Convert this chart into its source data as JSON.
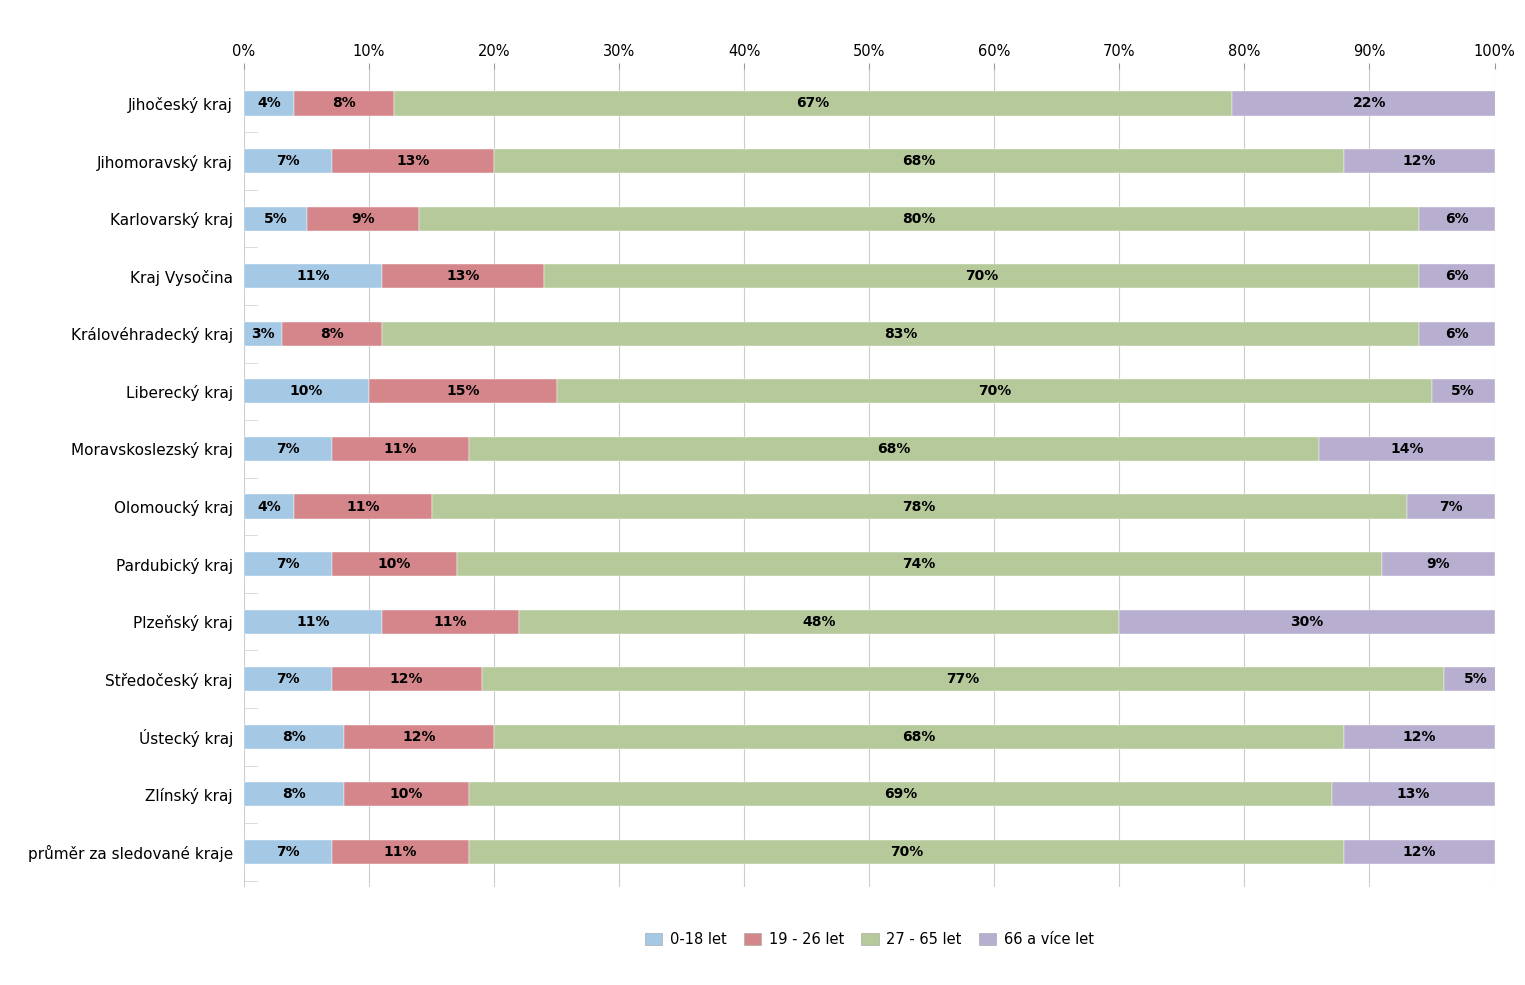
{
  "categories": [
    "Jihočeský kraj",
    "Jihomoravský kraj",
    "Karlovarský kraj",
    "Kraj Vysočina",
    "Královéhradecký kraj",
    "Liberecký kraj",
    "Moravskoslezský kraj",
    "Olomoucký kraj",
    "Pardubický kraj",
    "Plzeňský kraj",
    "Středočeský kraj",
    "Ústecký kraj",
    "Zlínský kraj",
    "průměr za sledované kraje"
  ],
  "series": {
    "0-18 let": [
      4,
      7,
      5,
      11,
      3,
      10,
      7,
      4,
      7,
      11,
      7,
      8,
      8,
      7
    ],
    "19 - 26 let": [
      8,
      13,
      9,
      13,
      8,
      15,
      11,
      11,
      10,
      11,
      12,
      12,
      10,
      11
    ],
    "27 - 65 let": [
      67,
      68,
      80,
      70,
      83,
      70,
      68,
      78,
      74,
      48,
      77,
      68,
      69,
      70
    ],
    "66 a více let": [
      22,
      12,
      6,
      6,
      6,
      5,
      14,
      7,
      9,
      30,
      5,
      12,
      13,
      12
    ]
  },
  "colors": {
    "0-18 let": "#a5c8e4",
    "19 - 26 let": "#d4868a",
    "27 - 65 let": "#b5c99a",
    "66 a více let": "#b8aed0"
  },
  "legend_labels": [
    "0-18 let",
    "19 - 26 let",
    "27 - 65 let",
    "66 a více let"
  ],
  "xticks": [
    0,
    10,
    20,
    30,
    40,
    50,
    60,
    70,
    80,
    90,
    100
  ],
  "xtick_labels": [
    "0%",
    "10%",
    "20%",
    "30%",
    "40%",
    "50%",
    "60%",
    "70%",
    "80%",
    "90%",
    "100%"
  ],
  "bar_height": 0.42,
  "background_color": "#ffffff",
  "label_fontsize": 10.0,
  "tick_fontsize": 10.5,
  "legend_fontsize": 10.5,
  "category_fontsize": 11.0
}
